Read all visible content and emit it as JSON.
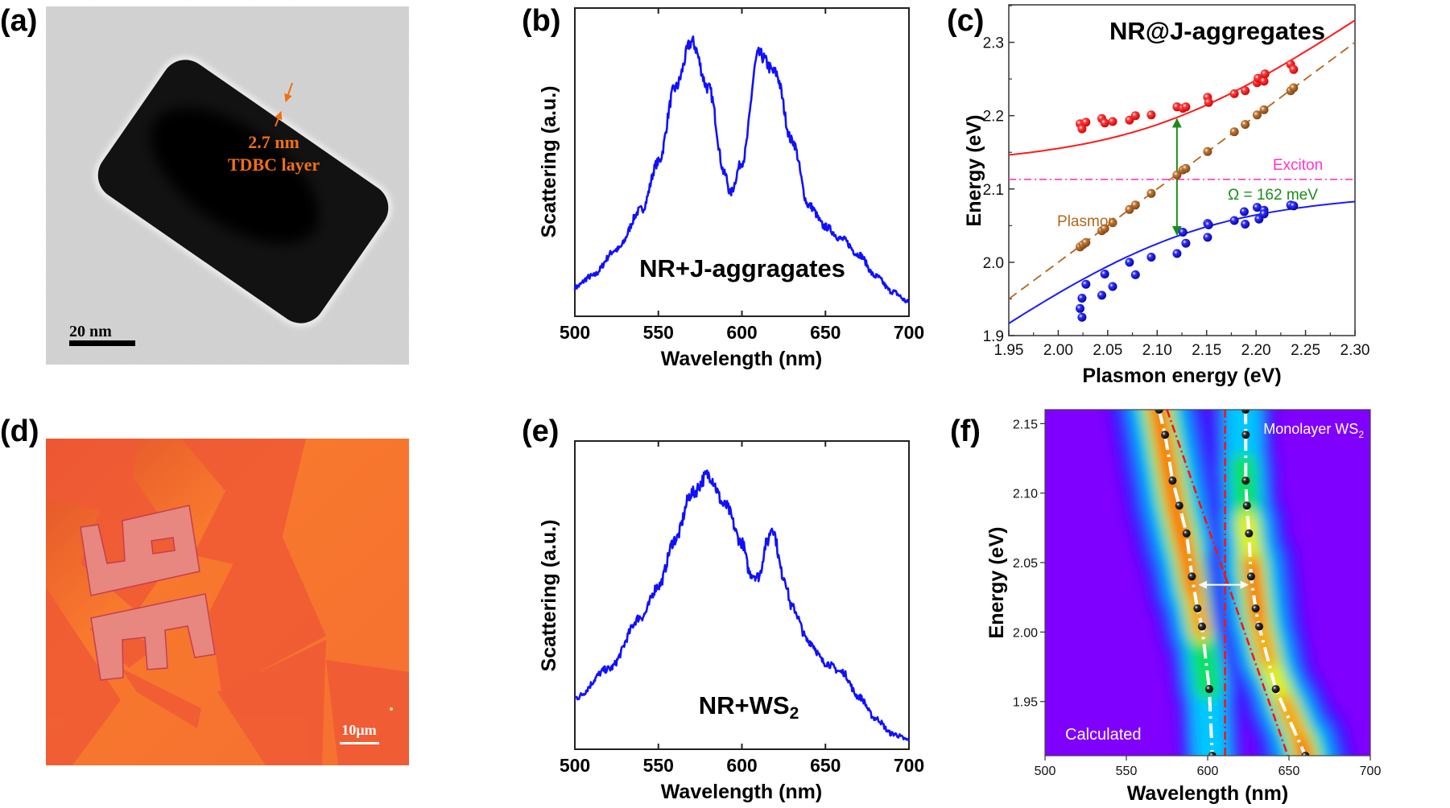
{
  "panel_labels": {
    "a": "(a)",
    "b": "(b)",
    "c": "(c)",
    "d": "(d)",
    "e": "(e)",
    "f": "(f)"
  },
  "panel_a": {
    "thickness_label": "2.7 nm",
    "layer_label": "TDBC layer",
    "scale_bar": "20 nm",
    "annotation_color": "#f07010"
  },
  "panel_d": {
    "scale_bar": "10μm"
  },
  "chart_data": [
    {
      "id": "b",
      "type": "line",
      "xlabel": "Wavelength (nm)",
      "ylabel": "Scattering (a.u.)",
      "annotation": "NR+J-aggragates",
      "xlim": [
        500,
        700
      ],
      "ylim": [
        0,
        1
      ],
      "xticks": [
        "500",
        "550",
        "600",
        "650",
        "700"
      ],
      "color": "#1010ff",
      "x": [
        500,
        510,
        525,
        540,
        550,
        560,
        570,
        580,
        590,
        593,
        600,
        610,
        620,
        630,
        640,
        650,
        660,
        670,
        680,
        690,
        700
      ],
      "y": [
        0.094,
        0.13,
        0.216,
        0.347,
        0.5,
        0.74,
        0.89,
        0.74,
        0.46,
        0.4,
        0.5,
        0.85,
        0.79,
        0.57,
        0.36,
        0.29,
        0.25,
        0.2,
        0.13,
        0.08,
        0.046
      ]
    },
    {
      "id": "c",
      "type": "scatter",
      "title": "NR@J-aggregates",
      "xlabel": "Plasmon energy (eV)",
      "ylabel": "Energy (eV)",
      "xlim": [
        1.95,
        2.3
      ],
      "ylim": [
        1.9,
        2.35
      ],
      "xticks": [
        "1.95",
        "2.00",
        "2.05",
        "2.10",
        "2.15",
        "2.20",
        "2.25",
        "2.30"
      ],
      "yticks": [
        "1.9",
        "2.0",
        "2.1",
        "2.2",
        "2.3"
      ],
      "exciton_label": "Exciton",
      "exciton_energy": 2.113,
      "plasmon_label": "Plasmon",
      "rabi_label": "Ω = 162 meV",
      "rabi_splitting_eV": 0.162,
      "rabi_arrow_x": 2.12,
      "colors": {
        "upper": "#ff1a1a",
        "lower": "#1a1aff",
        "plasmon": "#b5651d",
        "exciton": "#ff33cc",
        "rabi": "#1a8c1a"
      },
      "upper_points": [
        [
          2.022,
          2.189
        ],
        [
          2.024,
          2.182
        ],
        [
          2.028,
          2.191
        ],
        [
          2.044,
          2.196
        ],
        [
          2.047,
          2.19
        ],
        [
          2.055,
          2.192
        ],
        [
          2.072,
          2.194
        ],
        [
          2.078,
          2.2
        ],
        [
          2.094,
          2.201
        ],
        [
          2.12,
          2.212
        ],
        [
          2.126,
          2.21
        ],
        [
          2.129,
          2.212
        ],
        [
          2.151,
          2.225
        ],
        [
          2.152,
          2.218
        ],
        [
          2.178,
          2.23
        ],
        [
          2.189,
          2.234
        ],
        [
          2.201,
          2.245
        ],
        [
          2.202,
          2.251
        ],
        [
          2.208,
          2.247
        ],
        [
          2.209,
          2.257
        ],
        [
          2.235,
          2.27
        ],
        [
          2.238,
          2.263
        ]
      ],
      "plasmon_points": [
        [
          2.022,
          2.021
        ],
        [
          2.025,
          2.024
        ],
        [
          2.028,
          2.027
        ],
        [
          2.044,
          2.043
        ],
        [
          2.047,
          2.046
        ],
        [
          2.055,
          2.054
        ],
        [
          2.072,
          2.072
        ],
        [
          2.078,
          2.078
        ],
        [
          2.094,
          2.094
        ],
        [
          2.12,
          2.119
        ],
        [
          2.126,
          2.126
        ],
        [
          2.129,
          2.128
        ],
        [
          2.151,
          2.151
        ],
        [
          2.178,
          2.178
        ],
        [
          2.189,
          2.188
        ],
        [
          2.201,
          2.201
        ],
        [
          2.208,
          2.208
        ],
        [
          2.235,
          2.234
        ],
        [
          2.238,
          2.238
        ]
      ],
      "lower_points": [
        [
          2.022,
          1.937
        ],
        [
          2.024,
          1.951
        ],
        [
          2.024,
          1.925
        ],
        [
          2.028,
          1.97
        ],
        [
          2.044,
          1.955
        ],
        [
          2.047,
          1.984
        ],
        [
          2.055,
          1.967
        ],
        [
          2.072,
          2.0
        ],
        [
          2.078,
          1.983
        ],
        [
          2.094,
          2.007
        ],
        [
          2.12,
          2.012
        ],
        [
          2.126,
          2.041
        ],
        [
          2.129,
          2.026
        ],
        [
          2.151,
          2.053
        ],
        [
          2.152,
          2.051
        ],
        [
          2.151,
          2.034
        ],
        [
          2.178,
          2.057
        ],
        [
          2.188,
          2.069
        ],
        [
          2.189,
          2.052
        ],
        [
          2.201,
          2.075
        ],
        [
          2.203,
          2.059
        ],
        [
          2.208,
          2.071
        ],
        [
          2.208,
          2.066
        ],
        [
          2.235,
          2.078
        ],
        [
          2.238,
          2.077
        ]
      ]
    },
    {
      "id": "e",
      "type": "line",
      "xlabel": "Wavelength (nm)",
      "ylabel": "Scattering (a.u.)",
      "annotation_main": "NR+WS",
      "annotation_sub": "2",
      "xlim": [
        500,
        700
      ],
      "ylim": [
        0,
        1
      ],
      "xticks": [
        "500",
        "550",
        "600",
        "650",
        "700"
      ],
      "color": "#1010ff",
      "x": [
        500,
        520,
        540,
        550,
        560,
        570,
        580,
        590,
        600,
        605,
        610,
        615,
        618,
        625,
        630,
        640,
        650,
        660,
        670,
        680,
        690,
        700
      ],
      "y": [
        0.167,
        0.26,
        0.43,
        0.53,
        0.68,
        0.83,
        0.89,
        0.79,
        0.67,
        0.57,
        0.56,
        0.67,
        0.72,
        0.56,
        0.46,
        0.35,
        0.28,
        0.25,
        0.17,
        0.1,
        0.05,
        0.03
      ]
    },
    {
      "id": "f",
      "type": "heatmap",
      "xlabel": "Wavelength (nm)",
      "ylabel": "Energy (eV)",
      "xlim": [
        500,
        700
      ],
      "ylim": [
        1.911,
        2.16
      ],
      "xticks": [
        "500",
        "550",
        "600",
        "650",
        "700"
      ],
      "yticks": [
        "1.95",
        "2.00",
        "2.05",
        "2.10",
        "2.15"
      ],
      "label_main": "Monolayer WS",
      "label_sub": "2",
      "corner_label": "Calculated",
      "exciton_wavelength": 610.7,
      "plasmon_line": [
        [
          575,
          2.16
        ],
        [
          649.3,
          1.911
        ]
      ],
      "splitting_arrow": {
        "energy": 2.034,
        "from": 595,
        "to": 624.6
      },
      "upper_branch_points": [
        [
          570.1,
          2.16
        ],
        [
          573.8,
          2.142
        ],
        [
          578.4,
          2.109
        ],
        [
          582.5,
          2.091
        ],
        [
          587.0,
          2.071
        ],
        [
          590.3,
          2.04
        ],
        [
          593.7,
          2.017
        ],
        [
          596.5,
          2.004
        ],
        [
          601.0,
          1.959
        ],
        [
          602.8,
          1.911
        ]
      ],
      "lower_branch_points": [
        [
          623.3,
          2.16
        ],
        [
          623.4,
          2.142
        ],
        [
          623.4,
          2.109
        ],
        [
          624.1,
          2.091
        ],
        [
          625.4,
          2.071
        ],
        [
          626.7,
          2.04
        ],
        [
          629.5,
          2.017
        ],
        [
          631.7,
          2.004
        ],
        [
          641.9,
          1.959
        ],
        [
          660.1,
          1.911
        ]
      ],
      "ridges": [
        [
          [
            568,
            2.17,
            1.0
          ],
          [
            574,
            2.13,
            1.0
          ],
          [
            580,
            2.09,
            1.0
          ],
          [
            586,
            2.06,
            0.95
          ],
          [
            591,
            2.03,
            0.8
          ],
          [
            596,
            2.0,
            0.6
          ],
          [
            600,
            1.96,
            0.35
          ],
          [
            603,
            1.9,
            0.25
          ]
        ],
        [
          [
            621,
            2.17,
            0.3
          ],
          [
            622,
            2.12,
            0.35
          ],
          [
            624,
            2.08,
            0.5
          ],
          [
            627,
            2.05,
            0.8
          ],
          [
            631,
            2.01,
            0.95
          ],
          [
            637,
            1.98,
            0.65
          ],
          [
            647,
            1.95,
            0.6
          ],
          [
            658,
            1.92,
            0.9
          ],
          [
            662,
            1.9,
            1.0
          ]
        ]
      ]
    }
  ]
}
